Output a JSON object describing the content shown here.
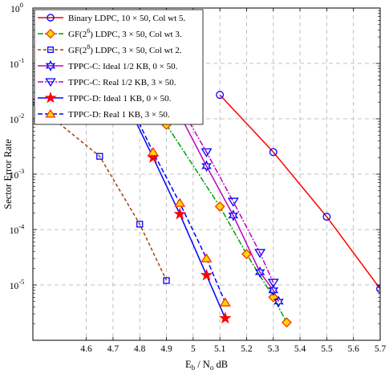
{
  "chart_data": {
    "type": "line",
    "xlabel_main": "E",
    "xlabel_sub1": "b",
    "xlabel_mid": " / N",
    "xlabel_sub2": "o",
    "xlabel_unit": " dB",
    "ylabel": "Sector Error Rate",
    "xlim": [
      4.4,
      5.7
    ],
    "ylim": [
      1e-06,
      1
    ],
    "yscale": "log",
    "grid": true,
    "legend_position": "top-left",
    "x_ticks": [
      "4.6",
      "4.7",
      "4.8",
      "4.9",
      "5",
      "5.1",
      "5.2",
      "5.3",
      "5.4",
      "5.5",
      "5.6",
      "5.7"
    ],
    "x_tick_values": [
      4.6,
      4.7,
      4.8,
      4.9,
      5.0,
      5.1,
      5.2,
      5.3,
      5.4,
      5.5,
      5.6,
      5.7
    ],
    "y_ticks": [
      {
        "base": "10",
        "exp": "0",
        "value": 1
      },
      {
        "base": "10",
        "exp": "-1",
        "value": 0.1
      },
      {
        "base": "10",
        "exp": "-2",
        "value": 0.01
      },
      {
        "base": "10",
        "exp": "-3",
        "value": 0.001
      },
      {
        "base": "10",
        "exp": "-4",
        "value": 0.0001
      },
      {
        "base": "10",
        "exp": "-5",
        "value": 1e-05
      }
    ],
    "series": [
      {
        "name": "Binary LDPC, 10 × 50, Col wt 5.",
        "legend": {
          "pre": "Binary LDPC, 10 × 50, Col wt 5.",
          "sup": "",
          "post": ""
        },
        "color": "#ff0000",
        "dash": "",
        "marker": "circle",
        "marker_fill": "none",
        "x": [
          5.1,
          5.3,
          5.5,
          5.7
        ],
        "y": [
          0.027,
          0.0025,
          0.00017,
          8.5e-06
        ]
      },
      {
        "name": "GF(2^6) LDPC, 3 × 50, Col wt 3.",
        "legend": {
          "pre": "GF(2",
          "sup": "6",
          "post": ") LDPC, 3 × 50, Col wt 3."
        },
        "color": "#00a000",
        "dash": "7 2 2 2",
        "marker": "diamond",
        "marker_fill": "#ffd800",
        "marker_stroke": "#ff3000",
        "x": [
          4.9,
          5.1,
          5.2,
          5.3,
          5.35
        ],
        "y": [
          0.0078,
          0.00026,
          3.6e-05,
          6e-06,
          2.1e-06
        ]
      },
      {
        "name": "GF(2^8) LDPC, 3 × 50, Col wt 2.",
        "legend": {
          "pre": "GF(2",
          "sup": "8",
          "post": ") LDPC, 3 × 50, Col wt 2."
        },
        "color": "#a04010",
        "dash": "4 3",
        "marker": "square",
        "marker_fill": "none",
        "marker_stroke": "#0000ff",
        "x": [
          4.4,
          4.65,
          4.8,
          4.9
        ],
        "y": [
          0.02,
          0.0021,
          0.000125,
          1.2e-05
        ]
      },
      {
        "name": "TPPC-C: Ideal 1/2 KB, 0 × 50.",
        "legend": {
          "pre": "TPPC-C: Ideal 1/2 KB, 0 × 50.",
          "sup": "",
          "post": ""
        },
        "color": "#c000c0",
        "dash": "",
        "marker": "star6",
        "marker_fill": "none",
        "marker_stroke": "#0000ff",
        "x": [
          4.85,
          5.05,
          5.15,
          5.25,
          5.3,
          5.32
        ],
        "y": [
          0.1,
          0.0014,
          0.00018,
          1.7e-05,
          8e-06,
          5e-06
        ]
      },
      {
        "name": "TPPC-C: Real 1/2 KB, 3 × 50.",
        "legend": {
          "pre": "TPPC-C: Real 1/2 KB, 3 × 50.",
          "sup": "",
          "post": ""
        },
        "color": "#c000c0",
        "dash": "7 2 2 2",
        "marker": "triangle-down",
        "marker_fill": "none",
        "marker_stroke": "#0000ff",
        "x": [
          4.85,
          5.05,
          5.15,
          5.25,
          5.3
        ],
        "y": [
          0.12,
          0.0025,
          0.00032,
          3.8e-05,
          1.1e-05
        ]
      },
      {
        "name": "TPPC-D: Ideal 1 KB, 0 × 50.",
        "legend": {
          "pre": "TPPC-D: Ideal   1 KB, 0 × 50.",
          "sup": "",
          "post": ""
        },
        "color": "#0000ff",
        "dash": "",
        "marker": "star5",
        "marker_fill": "#ff0000",
        "marker_stroke": "#ff0000",
        "x": [
          4.75,
          4.85,
          4.95,
          5.05,
          5.12
        ],
        "y": [
          0.02,
          0.002,
          0.00019,
          1.5e-05,
          2.5e-06
        ]
      },
      {
        "name": "TPPC-D: Real 1 KB, 3 × 50.",
        "legend": {
          "pre": "TPPC-D: Real    1 KB, 3 × 50.",
          "sup": "",
          "post": ""
        },
        "color": "#0000ff",
        "dash": "6 3",
        "marker": "triangle-up",
        "marker_fill": "#ffd800",
        "marker_stroke": "#ff3000",
        "x": [
          4.75,
          4.85,
          4.95,
          5.05,
          5.12
        ],
        "y": [
          0.025,
          0.0025,
          0.0003,
          3e-05,
          4.8e-06
        ]
      }
    ]
  }
}
